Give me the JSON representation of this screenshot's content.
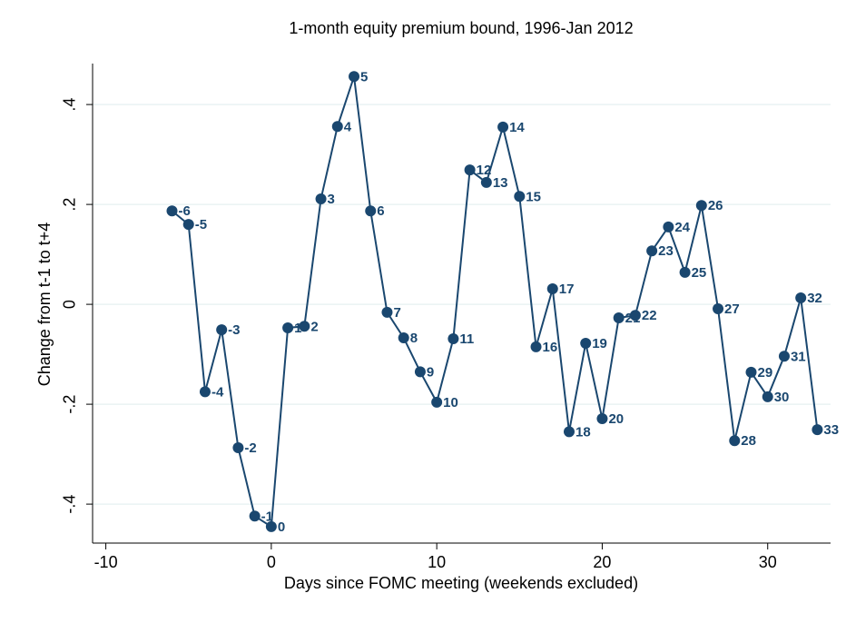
{
  "chart_data": {
    "type": "line",
    "title": "1-month equity premium bound, 1996-Jan 2012",
    "x_label": "Days since FOMC meeting (weekends excluded)",
    "y_label": "Change from t-1 to t+4",
    "x": [
      -6,
      -5,
      -4,
      -3,
      -2,
      -1,
      0,
      1,
      2,
      3,
      4,
      5,
      6,
      7,
      8,
      9,
      10,
      11,
      12,
      13,
      14,
      15,
      16,
      17,
      18,
      19,
      20,
      21,
      22,
      23,
      24,
      25,
      26,
      27,
      28,
      29,
      30,
      31,
      32,
      33
    ],
    "series": [
      {
        "color": "#1a476f",
        "values": [
          0.187,
          0.16,
          -0.175,
          -0.051,
          -0.287,
          -0.424,
          -0.445,
          -0.047,
          -0.044,
          0.211,
          0.356,
          0.456,
          0.187,
          -0.016,
          -0.067,
          -0.135,
          -0.196,
          -0.069,
          0.269,
          0.244,
          0.355,
          0.216,
          -0.085,
          0.031,
          -0.255,
          -0.078,
          -0.229,
          -0.027,
          -0.022,
          0.107,
          0.155,
          0.064,
          0.198,
          -0.009,
          -0.273,
          -0.136,
          -0.185,
          -0.104,
          0.013,
          -0.251
        ]
      }
    ],
    "xlim": [
      -10.8,
      33.8
    ],
    "xticks": [
      -10,
      0,
      10,
      20,
      30
    ],
    "ylim": [
      -0.478,
      0.482
    ],
    "yticks": [
      {
        "value": -0.4,
        "label": "-.4"
      },
      {
        "value": -0.2,
        "label": "-.2"
      },
      {
        "value": 0,
        "label": "0"
      },
      {
        "value": 0.2,
        "label": ".2"
      },
      {
        "value": 0.4,
        "label": ".4"
      }
    ],
    "grid": true
  }
}
